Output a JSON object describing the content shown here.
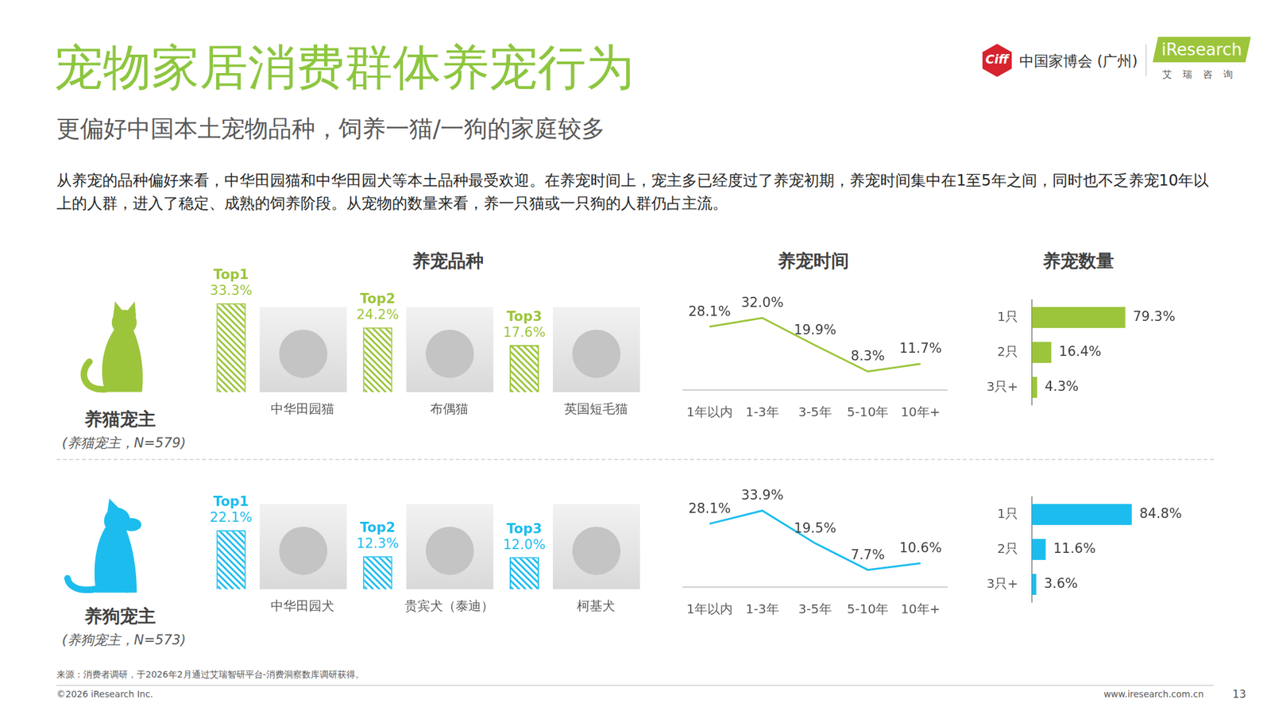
{
  "header": {
    "title": "宠物家居消费群体养宠行为",
    "subtitle": "更偏好中国本土宠物品种，饲养一猫/一狗的家庭较多",
    "logo_mark": "Ciff",
    "logo_text": "中国家博会 (广州)",
    "brand": "iResearch",
    "brand_cn": "艾瑞咨询"
  },
  "description": "从养宠的品种偏好来看，中华田园猫和中华田园犬等本土品种最受欢迎。在养宠时间上，宠主多已经度过了养宠初期，养宠时间集中在1至5年之间，同时也不乏养宠10年以上的人群，进入了稳定、成熟的饲养阶段。从宠物的数量来看，养一只猫或一只狗的人群仍占主流。",
  "panel_titles": [
    "养宠品种",
    "养宠时间",
    "养宠数量"
  ],
  "owners": [
    {
      "name": "养猫宠主",
      "sample": "(养猫宠主，N=579)"
    },
    {
      "name": "养狗宠主",
      "sample": "(养狗宠主，N=573)"
    }
  ],
  "chart_data": [
    {
      "type": "bar",
      "categories": [
        "中华田园猫",
        "布偶猫",
        "英国短毛猫"
      ],
      "values": [
        33.3,
        24.2,
        17.6
      ],
      "value_labels": [
        "33.3%",
        "24.2%",
        "17.6%"
      ],
      "annotations": [
        "Top1",
        "Top2",
        "Top3"
      ],
      "color": "#9cc53b",
      "ylim": [
        0,
        50
      ],
      "tick_labels": "x",
      "data_labels": true,
      "grid": false
    },
    {
      "type": "line",
      "categories": [
        "1年以内",
        "1-3年",
        "3-5年",
        "5-10年",
        "10年+"
      ],
      "values": [
        28.1,
        32.0,
        19.9,
        8.3,
        11.7
      ],
      "value_labels": [
        "28.1%",
        "32.0%",
        "19.9%",
        "8.3%",
        "11.7%"
      ],
      "color": "#9cc53b",
      "ylim": [
        0,
        45
      ],
      "tick_labels": "x",
      "data_labels": true,
      "grid": false
    },
    {
      "type": "bar",
      "orientation": "horizontal",
      "categories": [
        "1只",
        "2只",
        "3只+"
      ],
      "values": [
        79.3,
        16.4,
        4.3
      ],
      "value_labels": [
        "79.3%",
        "16.4%",
        "4.3%"
      ],
      "color": "#9cc53b",
      "xlim": [
        0,
        100
      ],
      "tick_labels": "y",
      "data_labels": true,
      "grid": false
    },
    {
      "type": "bar",
      "categories": [
        "中华田园犬",
        "贵宾犬（泰迪）",
        "柯基犬"
      ],
      "values": [
        22.1,
        12.3,
        12.0
      ],
      "value_labels": [
        "22.1%",
        "12.3%",
        "12.0%"
      ],
      "annotations": [
        "Top1",
        "Top2",
        "Top3"
      ],
      "color": "#1cbdee",
      "ylim": [
        0,
        50
      ],
      "tick_labels": "x",
      "data_labels": true,
      "grid": false
    },
    {
      "type": "line",
      "categories": [
        "1年以内",
        "1-3年",
        "3-5年",
        "5-10年",
        "10年+"
      ],
      "values": [
        28.1,
        33.9,
        19.5,
        7.7,
        10.6
      ],
      "value_labels": [
        "28.1%",
        "33.9%",
        "19.5%",
        "7.7%",
        "10.6%"
      ],
      "color": "#1cbdee",
      "ylim": [
        0,
        45
      ],
      "tick_labels": "x",
      "data_labels": true,
      "grid": false
    },
    {
      "type": "bar",
      "orientation": "horizontal",
      "categories": [
        "1只",
        "2只",
        "3只+"
      ],
      "values": [
        84.8,
        11.6,
        3.6
      ],
      "value_labels": [
        "84.8%",
        "11.6%",
        "3.6%"
      ],
      "color": "#1cbdee",
      "xlim": [
        0,
        100
      ],
      "tick_labels": "y",
      "data_labels": true,
      "grid": false
    }
  ],
  "footer": {
    "source": "来源：消费者调研，于2026年2月通过艾瑞智研平台-消费洞察数库调研获得。",
    "copyright": "©2026 iResearch Inc.",
    "website": "www.iresearch.com.cn",
    "page": "13"
  }
}
